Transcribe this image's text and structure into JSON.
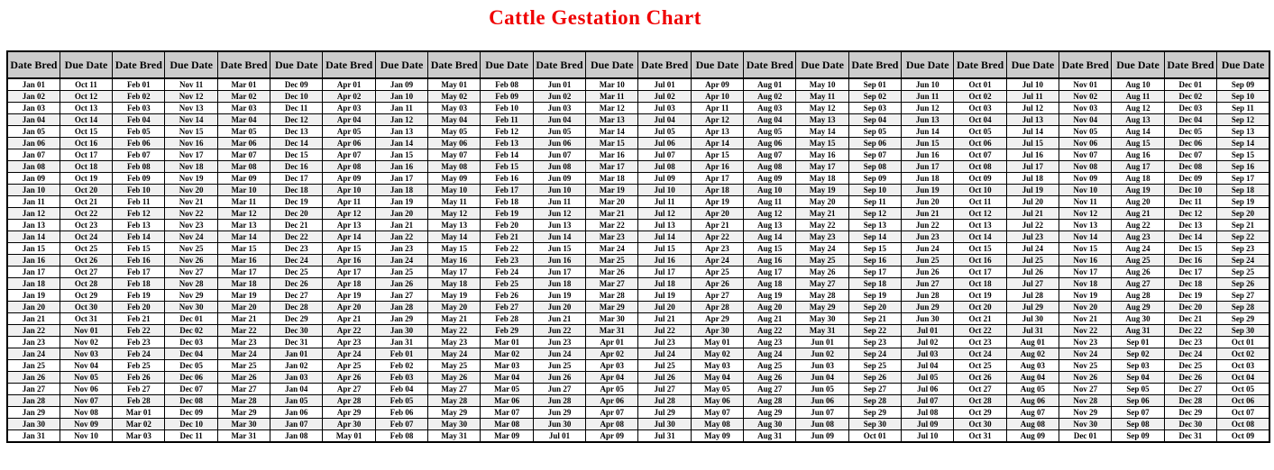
{
  "title": "Cattle Gestation Chart",
  "colors": {
    "title_red": "#f00000",
    "header_bg": "#cccccc",
    "row_stripe": "#f0f0f0",
    "border_color": "#000000",
    "text_color": "#000000"
  },
  "table": {
    "header_bred": "Date Bred",
    "header_due": "Due Date",
    "row_count": 31,
    "pairs": [
      {
        "bred": [
          "Jan 01",
          "Jan 02",
          "Jan 03",
          "Jan 04",
          "Jan 05",
          "Jan 06",
          "Jan 07",
          "Jan 08",
          "Jan 09",
          "Jan 10",
          "Jan 11",
          "Jan 12",
          "Jan 13",
          "Jan 14",
          "Jan 15",
          "Jan 16",
          "Jan 17",
          "Jan 18",
          "Jan 19",
          "Jan 20",
          "Jan 21",
          "Jan 22",
          "Jan 23",
          "Jan 24",
          "Jan 25",
          "Jan 26",
          "Jan 27",
          "Jan 28",
          "Jan 29",
          "Jan 30",
          "Jan 31"
        ],
        "due": [
          "Oct 11",
          "Oct 12",
          "Oct 13",
          "Oct 14",
          "Oct 15",
          "Oct 16",
          "Oct 17",
          "Oct 18",
          "Oct 19",
          "Oct 20",
          "Oct 21",
          "Oct 22",
          "Oct 23",
          "Oct 24",
          "Oct 25",
          "Oct 26",
          "Oct 27",
          "Oct 28",
          "Oct 29",
          "Oct 30",
          "Oct 31",
          "Nov 01",
          "Nov 02",
          "Nov 03",
          "Nov 04",
          "Nov 05",
          "Nov 06",
          "Nov 07",
          "Nov 08",
          "Nov 09",
          "Nov 10"
        ]
      },
      {
        "bred": [
          "Feb 01",
          "Feb 02",
          "Feb 03",
          "Feb 04",
          "Feb 05",
          "Feb 06",
          "Feb 07",
          "Feb 08",
          "Feb 09",
          "Feb 10",
          "Feb 11",
          "Feb 12",
          "Feb 13",
          "Feb 14",
          "Feb 15",
          "Feb 16",
          "Feb 17",
          "Feb 18",
          "Feb 19",
          "Feb 20",
          "Feb 21",
          "Feb 22",
          "Feb 23",
          "Feb 24",
          "Feb 25",
          "Feb 26",
          "Feb 27",
          "Feb 28",
          "Mar 01",
          "Mar 02",
          "Mar 03"
        ],
        "due": [
          "Nov 11",
          "Nov 12",
          "Nov 13",
          "Nov 14",
          "Nov 15",
          "Nov 16",
          "Nov 17",
          "Nov 18",
          "Nov 19",
          "Nov 20",
          "Nov 21",
          "Nov 22",
          "Nov 23",
          "Nov 24",
          "Nov 25",
          "Nov 26",
          "Nov 27",
          "Nov 28",
          "Nov 29",
          "Nov 30",
          "Dec 01",
          "Dec 02",
          "Dec 03",
          "Dec 04",
          "Dec 05",
          "Dec 06",
          "Dec 07",
          "Dec 08",
          "Dec 09",
          "Dec 10",
          "Dec 11"
        ]
      },
      {
        "bred": [
          "Mar 01",
          "Mar 02",
          "Mar 03",
          "Mar 04",
          "Mar 05",
          "Mar 06",
          "Mar 07",
          "Mar 08",
          "Mar 09",
          "Mar 10",
          "Mar 11",
          "Mar 12",
          "Mar 13",
          "Mar 14",
          "Mar 15",
          "Mar 16",
          "Mar 17",
          "Mar 18",
          "Mar 19",
          "Mar 20",
          "Mar 21",
          "Mar 22",
          "Mar 23",
          "Mar 24",
          "Mar 25",
          "Mar 26",
          "Mar 27",
          "Mar 28",
          "Mar 29",
          "Mar 30",
          "Mar 31"
        ],
        "due": [
          "Dec 09",
          "Dec 10",
          "Dec 11",
          "Dec 12",
          "Dec 13",
          "Dec 14",
          "Dec 15",
          "Dec 16",
          "Dec 17",
          "Dec 18",
          "Dec 19",
          "Dec 20",
          "Dec 21",
          "Dec 22",
          "Dec 23",
          "Dec 24",
          "Dec 25",
          "Dec 26",
          "Dec 27",
          "Dec 28",
          "Dec 29",
          "Dec 30",
          "Dec 31",
          "Jan 01",
          "Jan 02",
          "Jan 03",
          "Jan 04",
          "Jan 05",
          "Jan 06",
          "Jan 07",
          "Jan 08"
        ]
      },
      {
        "bred": [
          "Apr 01",
          "Apr 02",
          "Apr 03",
          "Apr 04",
          "Apr 05",
          "Apr 06",
          "Apr 07",
          "Apr 08",
          "Apr 09",
          "Apr 10",
          "Apr 11",
          "Apr 12",
          "Apr 13",
          "Apr 14",
          "Apr 15",
          "Apr 16",
          "Apr 17",
          "Apr 18",
          "Apr 19",
          "Apr 20",
          "Apr 21",
          "Apr 22",
          "Apr 23",
          "Apr 24",
          "Apr 25",
          "Apr 26",
          "Apr 27",
          "Apr 28",
          "Apr 29",
          "Apr 30",
          "May 01"
        ],
        "due": [
          "Jan 09",
          "Jan 10",
          "Jan 11",
          "Jan 12",
          "Jan 13",
          "Jan 14",
          "Jan 15",
          "Jan 16",
          "Jan 17",
          "Jan 18",
          "Jan 19",
          "Jan 20",
          "Jan 21",
          "Jan 22",
          "Jan 23",
          "Jan 24",
          "Jan 25",
          "Jan 26",
          "Jan 27",
          "Jan 28",
          "Jan 29",
          "Jan 30",
          "Jan 31",
          "Feb 01",
          "Feb 02",
          "Feb 03",
          "Feb 04",
          "Feb 05",
          "Feb 06",
          "Feb 07",
          "Feb 08"
        ]
      },
      {
        "bred": [
          "May 01",
          "May 02",
          "May 03",
          "May 04",
          "May 05",
          "May 06",
          "May 07",
          "May 08",
          "May 09",
          "May 10",
          "May 11",
          "May 12",
          "May 13",
          "May 14",
          "May 15",
          "May 16",
          "May 17",
          "May 18",
          "May 19",
          "May 20",
          "May 21",
          "May 22",
          "May 23",
          "May 24",
          "May 25",
          "May 26",
          "May 27",
          "May 28",
          "May 29",
          "May 30",
          "May 31"
        ],
        "due": [
          "Feb 08",
          "Feb 09",
          "Feb 10",
          "Feb 11",
          "Feb 12",
          "Feb 13",
          "Feb 14",
          "Feb 15",
          "Feb 16",
          "Feb 17",
          "Feb 18",
          "Feb 19",
          "Feb 20",
          "Feb 21",
          "Feb 22",
          "Feb 23",
          "Feb 24",
          "Feb 25",
          "Feb 26",
          "Feb 27",
          "Feb 28",
          "Feb 29",
          "Mar 01",
          "Mar 02",
          "Mar 03",
          "Mar 04",
          "Mar 05",
          "Mar 06",
          "Mar 07",
          "Mar 08",
          "Mar 09"
        ]
      },
      {
        "bred": [
          "Jun 01",
          "Jun 02",
          "Jun 03",
          "Jun 04",
          "Jun 05",
          "Jun 06",
          "Jun 07",
          "Jun 08",
          "Jun 09",
          "Jun 10",
          "Jun 11",
          "Jun 12",
          "Jun 13",
          "Jun 14",
          "Jun 15",
          "Jun 16",
          "Jun 17",
          "Jun 18",
          "Jun 19",
          "Jun 20",
          "Jun 21",
          "Jun 22",
          "Jun 23",
          "Jun 24",
          "Jun 25",
          "Jun 26",
          "Jun 27",
          "Jun 28",
          "Jun 29",
          "Jun 30",
          "Jul 01"
        ],
        "due": [
          "Mar 10",
          "Mar 11",
          "Mar 12",
          "Mar 13",
          "Mar 14",
          "Mar 15",
          "Mar 16",
          "Mar 17",
          "Mar 18",
          "Mar 19",
          "Mar 20",
          "Mar 21",
          "Mar 22",
          "Mar 23",
          "Mar 24",
          "Mar 25",
          "Mar 26",
          "Mar 27",
          "Mar 28",
          "Mar 29",
          "Mar 30",
          "Mar 31",
          "Apr 01",
          "Apr 02",
          "Apr 03",
          "Apr 04",
          "Apr 05",
          "Apr 06",
          "Apr 07",
          "Apr 08",
          "Apr 09"
        ]
      },
      {
        "bred": [
          "Jul 01",
          "Jul 02",
          "Jul 03",
          "Jul 04",
          "Jul 05",
          "Jul 06",
          "Jul 07",
          "Jul 08",
          "Jul 09",
          "Jul 10",
          "Jul 11",
          "Jul 12",
          "Jul 13",
          "Jul 14",
          "Jul 15",
          "Jul 16",
          "Jul 17",
          "Jul 18",
          "Jul 19",
          "Jul 20",
          "Jul 21",
          "Jul 22",
          "Jul 23",
          "Jul 24",
          "Jul 25",
          "Jul 26",
          "Jul 27",
          "Jul 28",
          "Jul 29",
          "Jul 30",
          "Jul 31"
        ],
        "due": [
          "Apr 09",
          "Apr 10",
          "Apr 11",
          "Apr 12",
          "Apr 13",
          "Apr 14",
          "Apr 15",
          "Apr 16",
          "Apr 17",
          "Apr 18",
          "Apr 19",
          "Apr 20",
          "Apr 21",
          "Apr 22",
          "Apr 23",
          "Apr 24",
          "Apr 25",
          "Apr 26",
          "Apr 27",
          "Apr 28",
          "Apr 29",
          "Apr 30",
          "May 01",
          "May 02",
          "May 03",
          "May 04",
          "May 05",
          "May 06",
          "May 07",
          "May 08",
          "May 09"
        ]
      },
      {
        "bred": [
          "Aug 01",
          "Aug 02",
          "Aug 03",
          "Aug 04",
          "Aug 05",
          "Aug 06",
          "Aug 07",
          "Aug 08",
          "Aug 09",
          "Aug 10",
          "Aug 11",
          "Aug 12",
          "Aug 13",
          "Aug 14",
          "Aug 15",
          "Aug 16",
          "Aug 17",
          "Aug 18",
          "Aug 19",
          "Aug 20",
          "Aug 21",
          "Aug 22",
          "Aug 23",
          "Aug 24",
          "Aug 25",
          "Aug 26",
          "Aug 27",
          "Aug 28",
          "Aug 29",
          "Aug 30",
          "Aug 31"
        ],
        "due": [
          "May 10",
          "May 11",
          "May 12",
          "May 13",
          "May 14",
          "May 15",
          "May 16",
          "May 17",
          "May 18",
          "May 19",
          "May 20",
          "May 21",
          "May 22",
          "May 23",
          "May 24",
          "May 25",
          "May 26",
          "May 27",
          "May 28",
          "May 29",
          "May 30",
          "May 31",
          "Jun 01",
          "Jun 02",
          "Jun 03",
          "Jun 04",
          "Jun 05",
          "Jun 06",
          "Jun 07",
          "Jun 08",
          "Jun 09"
        ]
      },
      {
        "bred": [
          "Sep 01",
          "Sep 02",
          "Sep 03",
          "Sep 04",
          "Sep 05",
          "Sep 06",
          "Sep 07",
          "Sep 08",
          "Sep 09",
          "Sep 10",
          "Sep 11",
          "Sep 12",
          "Sep 13",
          "Sep 14",
          "Sep 15",
          "Sep 16",
          "Sep 17",
          "Sep 18",
          "Sep 19",
          "Sep 20",
          "Sep 21",
          "Sep 22",
          "Sep 23",
          "Sep 24",
          "Sep 25",
          "Sep 26",
          "Sep 27",
          "Sep 28",
          "Sep 29",
          "Sep 30",
          "Oct 01"
        ],
        "due": [
          "Jun 10",
          "Jun 11",
          "Jun 12",
          "Jun 13",
          "Jun 14",
          "Jun 15",
          "Jun 16",
          "Jun 17",
          "Jun 18",
          "Jun 19",
          "Jun 20",
          "Jun 21",
          "Jun 22",
          "Jun 23",
          "Jun 24",
          "Jun 25",
          "Jun 26",
          "Jun 27",
          "Jun 28",
          "Jun 29",
          "Jun 30",
          "Jul 01",
          "Jul 02",
          "Jul 03",
          "Jul 04",
          "Jul 05",
          "Jul 06",
          "Jul 07",
          "Jul 08",
          "Jul 09",
          "Jul 10"
        ]
      },
      {
        "bred": [
          "Oct 01",
          "Oct 02",
          "Oct 03",
          "Oct 04",
          "Oct 05",
          "Oct 06",
          "Oct 07",
          "Oct 08",
          "Oct 09",
          "Oct 10",
          "Oct 11",
          "Oct 12",
          "Oct 13",
          "Oct 14",
          "Oct 15",
          "Oct 16",
          "Oct 17",
          "Oct 18",
          "Oct 19",
          "Oct 20",
          "Oct 21",
          "Oct 22",
          "Oct 23",
          "Oct 24",
          "Oct 25",
          "Oct 26",
          "Oct 27",
          "Oct 28",
          "Oct 29",
          "Oct 30",
          "Oct 31"
        ],
        "due": [
          "Jul 10",
          "Jul 11",
          "Jul 12",
          "Jul 13",
          "Jul 14",
          "Jul 15",
          "Jul 16",
          "Jul 17",
          "Jul 18",
          "Jul 19",
          "Jul 20",
          "Jul 21",
          "Jul 22",
          "Jul 23",
          "Jul 24",
          "Jul 25",
          "Jul 26",
          "Jul 27",
          "Jul 28",
          "Jul 29",
          "Jul 30",
          "Jul 31",
          "Aug 01",
          "Aug 02",
          "Aug 03",
          "Aug 04",
          "Aug 05",
          "Aug 06",
          "Aug 07",
          "Aug 08",
          "Aug 09"
        ]
      },
      {
        "bred": [
          "Nov 01",
          "Nov 02",
          "Nov 03",
          "Nov 04",
          "Nov 05",
          "Nov 06",
          "Nov 07",
          "Nov 08",
          "Nov 09",
          "Nov 10",
          "Nov 11",
          "Nov 12",
          "Nov 13",
          "Nov 14",
          "Nov 15",
          "Nov 16",
          "Nov 17",
          "Nov 18",
          "Nov 19",
          "Nov 20",
          "Nov 21",
          "Nov 22",
          "Nov 23",
          "Nov 24",
          "Nov 25",
          "Nov 26",
          "Nov 27",
          "Nov 28",
          "Nov 29",
          "Nov 30",
          "Dec 01"
        ],
        "due": [
          "Aug 10",
          "Aug 11",
          "Aug 12",
          "Aug 13",
          "Aug 14",
          "Aug 15",
          "Aug 16",
          "Aug 17",
          "Aug 18",
          "Aug 19",
          "Aug 20",
          "Aug 21",
          "Aug 22",
          "Aug 23",
          "Aug 24",
          "Aug 25",
          "Aug 26",
          "Aug 27",
          "Aug 28",
          "Aug 29",
          "Aug 30",
          "Aug 31",
          "Sep 01",
          "Sep 02",
          "Sep 03",
          "Sep 04",
          "Sep 05",
          "Sep 06",
          "Sep 07",
          "Sep 08",
          "Sep 09"
        ]
      },
      {
        "bred": [
          "Dec 01",
          "Dec 02",
          "Dec 03",
          "Dec 04",
          "Dec 05",
          "Dec 06",
          "Dec 07",
          "Dec 08",
          "Dec 09",
          "Dec 10",
          "Dec 11",
          "Dec 12",
          "Dec 13",
          "Dec 14",
          "Dec 15",
          "Dec 16",
          "Dec 17",
          "Dec 18",
          "Dec 19",
          "Dec 20",
          "Dec 21",
          "Dec 22",
          "Dec 23",
          "Dec 24",
          "Dec 25",
          "Dec 26",
          "Dec 27",
          "Dec 28",
          "Dec 29",
          "Dec 30",
          "Dec 31"
        ],
        "due": [
          "Sep 09",
          "Sep 10",
          "Sep 11",
          "Sep 12",
          "Sep 13",
          "Sep 14",
          "Sep 15",
          "Sep 16",
          "Sep 17",
          "Sep 18",
          "Sep 19",
          "Sep 20",
          "Sep 21",
          "Sep 22",
          "Sep 23",
          "Sep 24",
          "Sep 25",
          "Sep 26",
          "Sep 27",
          "Sep 28",
          "Sep 29",
          "Sep 30",
          "Oct 01",
          "Oct 02",
          "Oct 03",
          "Oct 04",
          "Oct 05",
          "Oct 06",
          "Oct 07",
          "Oct 08",
          "Oct 09"
        ]
      }
    ]
  }
}
